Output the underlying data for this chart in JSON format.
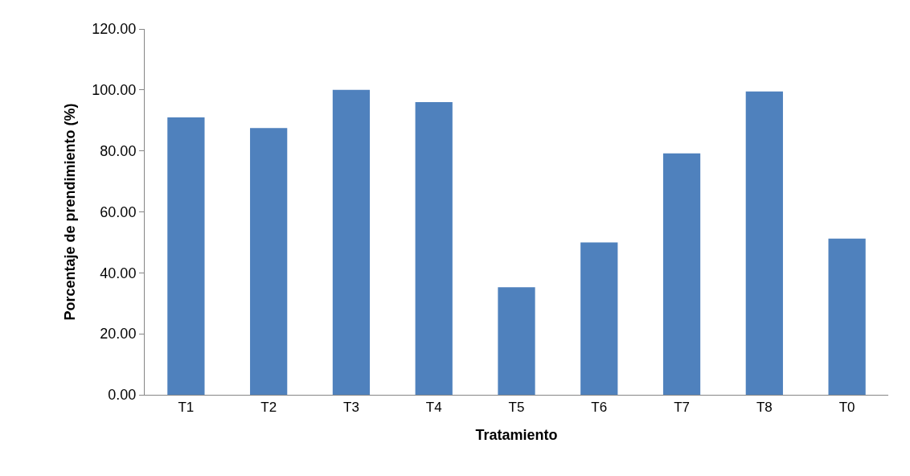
{
  "chart_data": {
    "type": "bar",
    "xlabel": "Tratamiento",
    "ylabel": "Porcentaje de prendimiento (%)",
    "categories": [
      "T1",
      "T2",
      "T3",
      "T4",
      "T5",
      "T6",
      "T7",
      "T8",
      "T0"
    ],
    "values": [
      91.0,
      87.5,
      100.0,
      96.0,
      35.3,
      50.0,
      79.2,
      99.5,
      51.2
    ],
    "color": "#4f81bd",
    "ylim": [
      0,
      120
    ],
    "yticks": [
      {
        "value": 0,
        "label": "0.00"
      },
      {
        "value": 20,
        "label": "20.00"
      },
      {
        "value": 40,
        "label": "40.00"
      },
      {
        "value": 60,
        "label": "60.00"
      },
      {
        "value": 80,
        "label": "80.00"
      },
      {
        "value": 100,
        "label": "100.00"
      },
      {
        "value": 120,
        "label": "120.00"
      }
    ],
    "grid": false
  }
}
